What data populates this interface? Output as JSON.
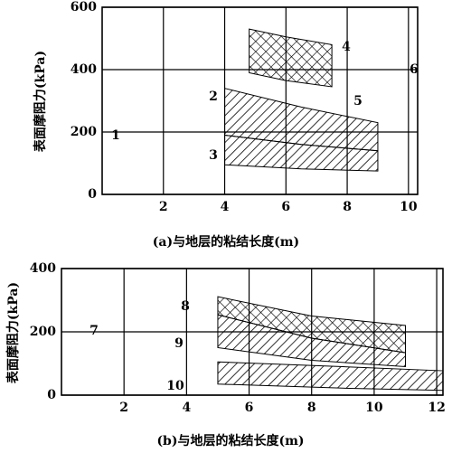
{
  "chart_data": [
    {
      "type": "band",
      "y_label": "表面摩阻力(kPa)",
      "x_label": "(a)与地层的粘结长度(m)",
      "xlim": [
        0,
        10.3
      ],
      "ylim": [
        0,
        600
      ],
      "xticks": [
        2,
        4,
        6,
        8,
        10
      ],
      "yticks": [
        0,
        200,
        400,
        600
      ],
      "grid": true,
      "series": [
        {
          "name": "4",
          "hatch": "cross",
          "color": "#000000",
          "x": [
            4.8,
            6,
            7.5
          ],
          "upper": [
            530,
            505,
            480
          ],
          "lower": [
            390,
            365,
            345
          ]
        },
        {
          "name": "2",
          "hatch": "diagonal",
          "color": "#000000",
          "x": [
            4,
            6.5,
            9
          ],
          "upper": [
            340,
            280,
            230
          ],
          "lower": [
            190,
            160,
            140
          ]
        },
        {
          "name": "3",
          "hatch": "diagonal",
          "color": "#000000",
          "x": [
            4,
            6.5,
            9
          ],
          "upper": [
            190,
            160,
            140
          ],
          "lower": [
            95,
            82,
            75
          ]
        }
      ],
      "annotations": [
        "1",
        "5",
        "6"
      ]
    },
    {
      "type": "band",
      "y_label": "表面摩阻力(kPa)",
      "x_label": "(b)与地层的粘结长度(m)",
      "xlim": [
        0,
        12.2
      ],
      "ylim": [
        0,
        400
      ],
      "xticks": [
        2,
        4,
        6,
        8,
        10,
        12
      ],
      "yticks": [
        0,
        200,
        400
      ],
      "grid": true,
      "series": [
        {
          "name": "8",
          "hatch": "cross",
          "color": "#000000",
          "x": [
            5,
            8,
            11
          ],
          "upper": [
            311,
            250,
            220
          ],
          "lower": [
            254,
            180,
            134
          ]
        },
        {
          "name": "9",
          "hatch": "diagonal",
          "color": "#000000",
          "x": [
            5,
            8,
            11
          ],
          "upper": [
            254,
            180,
            134
          ],
          "lower": [
            150,
            110,
            90
          ]
        },
        {
          "name": "10",
          "hatch": "diagonal",
          "color": "#000000",
          "x": [
            5,
            9,
            12.2
          ],
          "upper": [
            105,
            90,
            77
          ],
          "lower": [
            35,
            22,
            15
          ]
        }
      ],
      "annotations": [
        "7"
      ]
    }
  ]
}
